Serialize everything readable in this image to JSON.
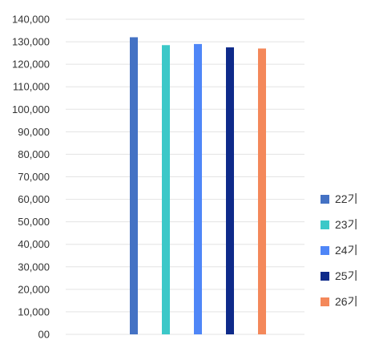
{
  "chart_data": {
    "type": "bar",
    "series": [
      {
        "name": "22기",
        "value": 132000,
        "color": "#4472C4"
      },
      {
        "name": "23기",
        "value": 128500,
        "color": "#3CC8C8"
      },
      {
        "name": "24기",
        "value": 129000,
        "color": "#4F86F7"
      },
      {
        "name": "25기",
        "value": 127500,
        "color": "#0E2A8A"
      },
      {
        "name": "26기",
        "value": 127000,
        "color": "#F4885A"
      }
    ],
    "y_ticks": [
      "00",
      "10,000",
      "20,000",
      "30,000",
      "40,000",
      "50,000",
      "60,000",
      "70,000",
      "80,000",
      "90,000",
      "100,000",
      "110,000",
      "120,000",
      "130,000",
      "140,000"
    ],
    "ylim": [
      0,
      140000
    ],
    "grid": true,
    "legend_position": "right"
  }
}
